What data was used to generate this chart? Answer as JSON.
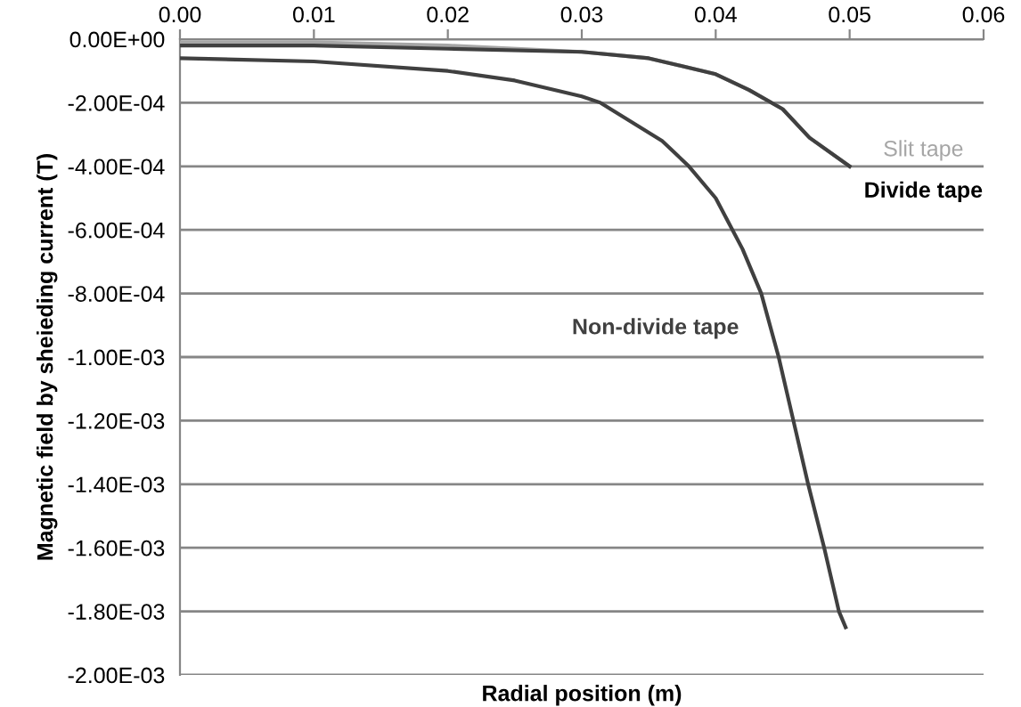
{
  "chart_data": {
    "type": "line",
    "xlabel": "Radial position (m)",
    "ylabel": "Magnetic field by sheieding current (T)",
    "xlim": [
      0,
      0.06
    ],
    "ylim": [
      -0.002,
      0
    ],
    "xticks": [
      {
        "value": 0,
        "label": "0.00"
      },
      {
        "value": 0.01,
        "label": "0.01"
      },
      {
        "value": 0.02,
        "label": "0.02"
      },
      {
        "value": 0.03,
        "label": "0.03"
      },
      {
        "value": 0.04,
        "label": "0.04"
      },
      {
        "value": 0.05,
        "label": "0.05"
      },
      {
        "value": 0.06,
        "label": "0.06"
      }
    ],
    "yticks": [
      {
        "value": 0,
        "label": "0.00E+00"
      },
      {
        "value": -0.0002,
        "label": "-2.00E-04"
      },
      {
        "value": -0.0004,
        "label": "-4.00E-04"
      },
      {
        "value": -0.0006,
        "label": "-6.00E-04"
      },
      {
        "value": -0.0008,
        "label": "-8.00E-04"
      },
      {
        "value": -0.001,
        "label": "-1.00E-03"
      },
      {
        "value": -0.0012,
        "label": "-1.20E-03"
      },
      {
        "value": -0.0014,
        "label": "-1.40E-03"
      },
      {
        "value": -0.0016,
        "label": "-1.60E-03"
      },
      {
        "value": -0.0018,
        "label": "-1.80E-03"
      },
      {
        "value": -0.002,
        "label": "-2.00E-03"
      }
    ],
    "grid": "y",
    "legend": false,
    "marker": "none",
    "line_style": "solid",
    "series": [
      {
        "name": "Slit tape",
        "color": "#a6a6a6",
        "x": [
          0,
          0.01,
          0.02,
          0.03,
          0.035,
          0.04,
          0.0425,
          0.045,
          0.047,
          0.05
        ],
        "values": [
          -1e-05,
          -1e-05,
          -2e-05,
          -4e-05,
          -6e-05,
          -0.00011,
          -0.00016,
          -0.00022,
          -0.00031,
          -0.0004
        ]
      },
      {
        "name": "Divide tape",
        "color": "#404040",
        "x": [
          0,
          0.01,
          0.02,
          0.03,
          0.035,
          0.04,
          0.0425,
          0.045,
          0.047,
          0.05
        ],
        "values": [
          -2e-05,
          -2e-05,
          -3e-05,
          -4e-05,
          -6e-05,
          -0.00011,
          -0.00016,
          -0.00022,
          -0.00031,
          -0.0004
        ]
      },
      {
        "name": "Non-divide tape",
        "color": "#404040",
        "x": [
          0,
          0.01,
          0.02,
          0.025,
          0.03,
          0.0314,
          0.036,
          0.038,
          0.04,
          0.042,
          0.0434,
          0.0447,
          0.0458,
          0.0469,
          0.0481,
          0.0492,
          0.0497
        ],
        "values": [
          -6e-05,
          -7e-05,
          -0.0001,
          -0.00013,
          -0.00018,
          -0.0002,
          -0.00032,
          -0.0004,
          -0.0005,
          -0.00066,
          -0.0008,
          -0.001,
          -0.0012,
          -0.0014,
          -0.0016,
          -0.0018,
          -0.00185
        ]
      }
    ]
  }
}
